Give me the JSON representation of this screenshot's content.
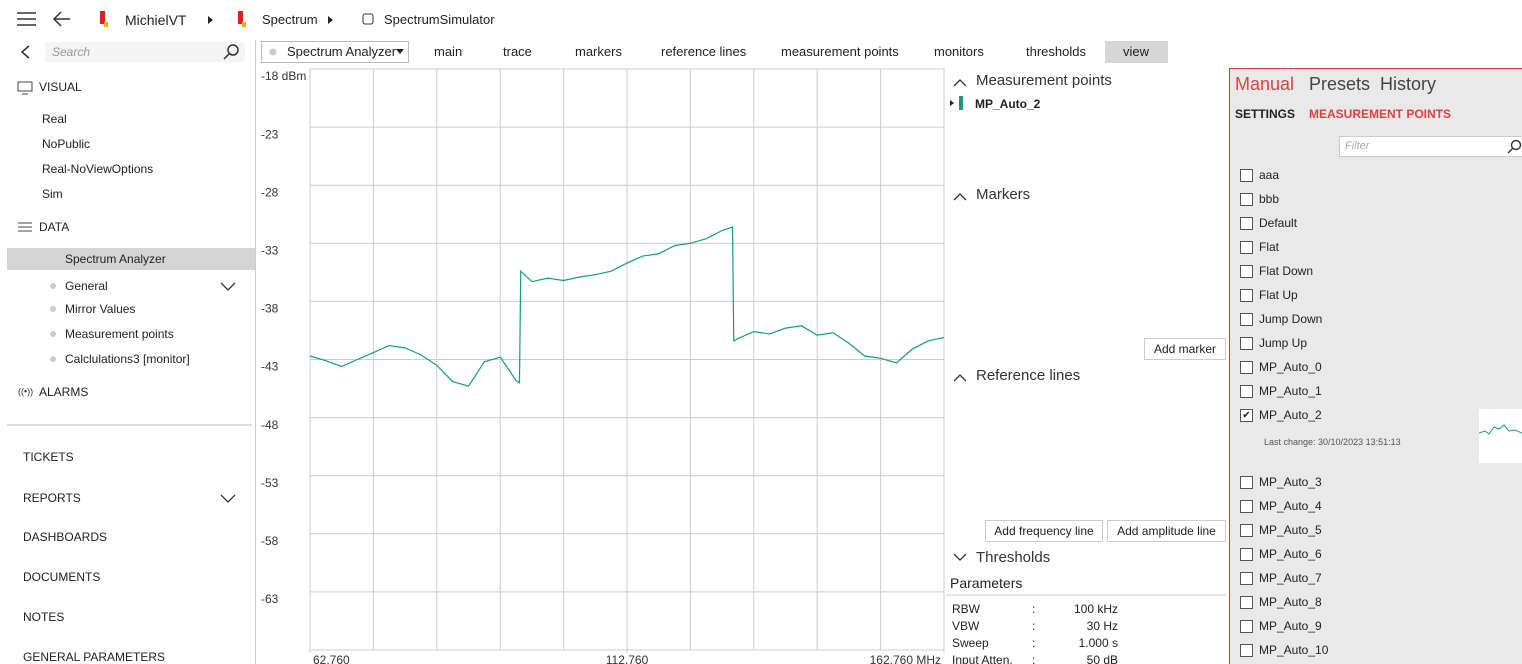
{
  "breadcrumb": [
    "MichielVT",
    "Spectrum",
    "SpectrumSimulator"
  ],
  "sidebar": {
    "search_placeholder": "Search",
    "visual": {
      "title": "VISUAL",
      "items": [
        "Real",
        "NoPublic",
        "Real-NoViewOptions",
        "Sim"
      ]
    },
    "data": {
      "title": "DATA",
      "selected": "Spectrum Analyzer",
      "items": [
        "General",
        "Mirror Values",
        "Measurement points",
        "Calclulations3 [monitor]"
      ]
    },
    "alarms": "ALARMS",
    "modules": [
      "TICKETS",
      "REPORTS",
      "DASHBOARDS",
      "DOCUMENTS",
      "NOTES",
      "GENERAL PARAMETERS"
    ]
  },
  "toolbar": {
    "dropdown": "Spectrum Analyzer",
    "tabs": [
      "main",
      "trace",
      "markers",
      "reference lines",
      "measurement points",
      "monitors",
      "thresholds",
      "view"
    ]
  },
  "chart_data": {
    "type": "line",
    "color": "#1a9b78",
    "grid": true,
    "xlim": [
      62.76,
      162.76
    ],
    "xticks": [
      {
        "value": 62.76,
        "label": "62.760"
      },
      {
        "value": 112.76,
        "label": "112.760"
      },
      {
        "value": 162.76,
        "label": "162.760 MHz"
      }
    ],
    "ylim": [
      -68,
      -18
    ],
    "yticks": [
      {
        "value": -18,
        "label": "-18 dBm"
      },
      -23,
      -28,
      -33,
      -38,
      -43,
      -48,
      -53,
      -58,
      -63
    ],
    "x": [
      62.76,
      65.26,
      67.76,
      70.26,
      72.76,
      75.26,
      77.76,
      80.26,
      82.76,
      85.26,
      87.76,
      90.26,
      92.76,
      95.26,
      95.8,
      96.0,
      97.76,
      100.26,
      102.76,
      105.26,
      107.76,
      110.26,
      112.76,
      115.26,
      117.76,
      120.26,
      122.76,
      125.26,
      127.76,
      129.4,
      129.6,
      130.26,
      132.76,
      135.26,
      137.76,
      140.26,
      142.76,
      145.26,
      147.76,
      150.26,
      152.76,
      155.26,
      157.76,
      160.26,
      162.76
    ],
    "values": [
      -42.7,
      -43.1,
      -43.6,
      -43.0,
      -42.4,
      -41.8,
      -42.0,
      -42.6,
      -43.5,
      -44.9,
      -45.3,
      -43.2,
      -42.8,
      -44.8,
      -45.0,
      -35.4,
      -36.3,
      -36.0,
      -36.2,
      -35.9,
      -35.7,
      -35.4,
      -34.7,
      -34.1,
      -33.9,
      -33.2,
      -33.0,
      -32.6,
      -31.9,
      -31.6,
      -41.4,
      -41.2,
      -40.6,
      -40.8,
      -40.3,
      -40.1,
      -40.9,
      -40.7,
      -41.6,
      -42.7,
      -42.9,
      -43.3,
      -42.1,
      -41.4,
      -41.1
    ]
  },
  "side_panel": {
    "measurement_points": {
      "title": "Measurement points",
      "items": [
        "MP_Auto_2"
      ]
    },
    "markers": {
      "title": "Markers",
      "button": "Add marker"
    },
    "reference_lines": {
      "title": "Reference lines",
      "buttons": [
        "Add frequency line",
        "Add amplitude line"
      ]
    },
    "thresholds": {
      "title": "Thresholds"
    },
    "parameters": {
      "title": "Parameters",
      "rows": [
        [
          "RBW",
          ":",
          "100 kHz"
        ],
        [
          "VBW",
          ":",
          "30 Hz"
        ],
        [
          "Sweep",
          ":",
          "1.000 s"
        ],
        [
          "Input Atten.",
          ":",
          "50 dB"
        ]
      ]
    }
  },
  "settings_panel": {
    "tabs": [
      "Manual",
      "Presets",
      "History"
    ],
    "subtabs": [
      "SETTINGS",
      "MEASUREMENT POINTS"
    ],
    "filter_placeholder": "Filter",
    "items": [
      {
        "label": "aaa",
        "checked": false
      },
      {
        "label": "bbb",
        "checked": false
      },
      {
        "label": "Default",
        "checked": false
      },
      {
        "label": "Flat",
        "checked": false
      },
      {
        "label": "Flat Down",
        "checked": false
      },
      {
        "label": "Flat Up",
        "checked": false
      },
      {
        "label": "Jump Down",
        "checked": false
      },
      {
        "label": "Jump Up",
        "checked": false
      },
      {
        "label": "MP_Auto_0",
        "checked": false
      },
      {
        "label": "MP_Auto_1",
        "checked": false
      },
      {
        "label": "MP_Auto_2",
        "checked": true,
        "detail": "Last change: 30/10/2023 13:51:13"
      },
      {
        "label": "MP_Auto_3",
        "checked": false
      },
      {
        "label": "MP_Auto_4",
        "checked": false
      },
      {
        "label": "MP_Auto_5",
        "checked": false
      },
      {
        "label": "MP_Auto_6",
        "checked": false
      },
      {
        "label": "MP_Auto_7",
        "checked": false
      },
      {
        "label": "MP_Auto_8",
        "checked": false
      },
      {
        "label": "MP_Auto_9",
        "checked": false
      },
      {
        "label": "MP_Auto_10",
        "checked": false
      }
    ]
  }
}
